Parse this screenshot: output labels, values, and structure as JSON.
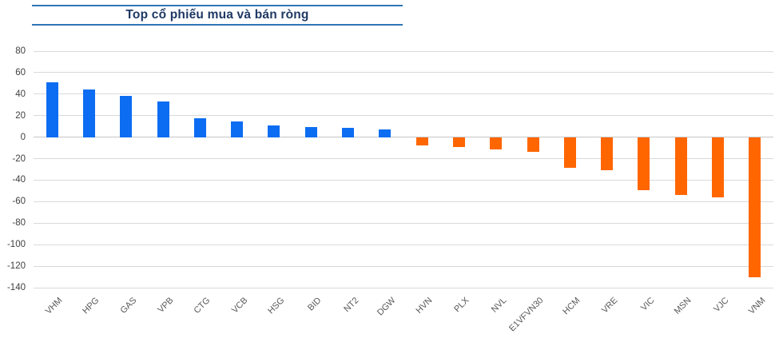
{
  "header": {
    "title": "Top cổ phiếu mua và bán ròng"
  },
  "colors": {
    "positive_bar": "#0D6DF2",
    "negative_bar": "#FF6600",
    "title_text": "#1F3864",
    "title_border": "#2E75B6",
    "gridline": "#D9D9D9",
    "zero_line": "#C6C6C6",
    "y_axis_label": "#404040",
    "x_axis_label": "#595959",
    "background": "#FFFFFF"
  },
  "chart_data": {
    "type": "bar",
    "title": "Top cổ phiếu mua và bán ròng",
    "xlabel": "",
    "ylabel": "",
    "categories": [
      "VHM",
      "HPG",
      "GAS",
      "VPB",
      "CTG",
      "VCB",
      "HSG",
      "BID",
      "NT2",
      "DGW",
      "HVN",
      "PLX",
      "NVL",
      "E1VFVN30",
      "HCM",
      "VRE",
      "VIC",
      "MSN",
      "VJC",
      "VNM"
    ],
    "values": [
      51,
      44,
      38.5,
      33.5,
      17.5,
      14.5,
      11,
      9.5,
      8.5,
      7.5,
      -7.5,
      -9.5,
      -11.5,
      -13.5,
      -28.5,
      -31,
      -49,
      -53.5,
      -56,
      -130
    ],
    "ylim": [
      -140,
      80
    ],
    "yticks": [
      80,
      60,
      40,
      20,
      0,
      -20,
      -40,
      -60,
      -80,
      -100,
      -120,
      -140
    ],
    "grid": true,
    "legend": false,
    "bar_color_rule": "positive values blue, negative values orange",
    "x_tick_rotation_deg": 45
  }
}
